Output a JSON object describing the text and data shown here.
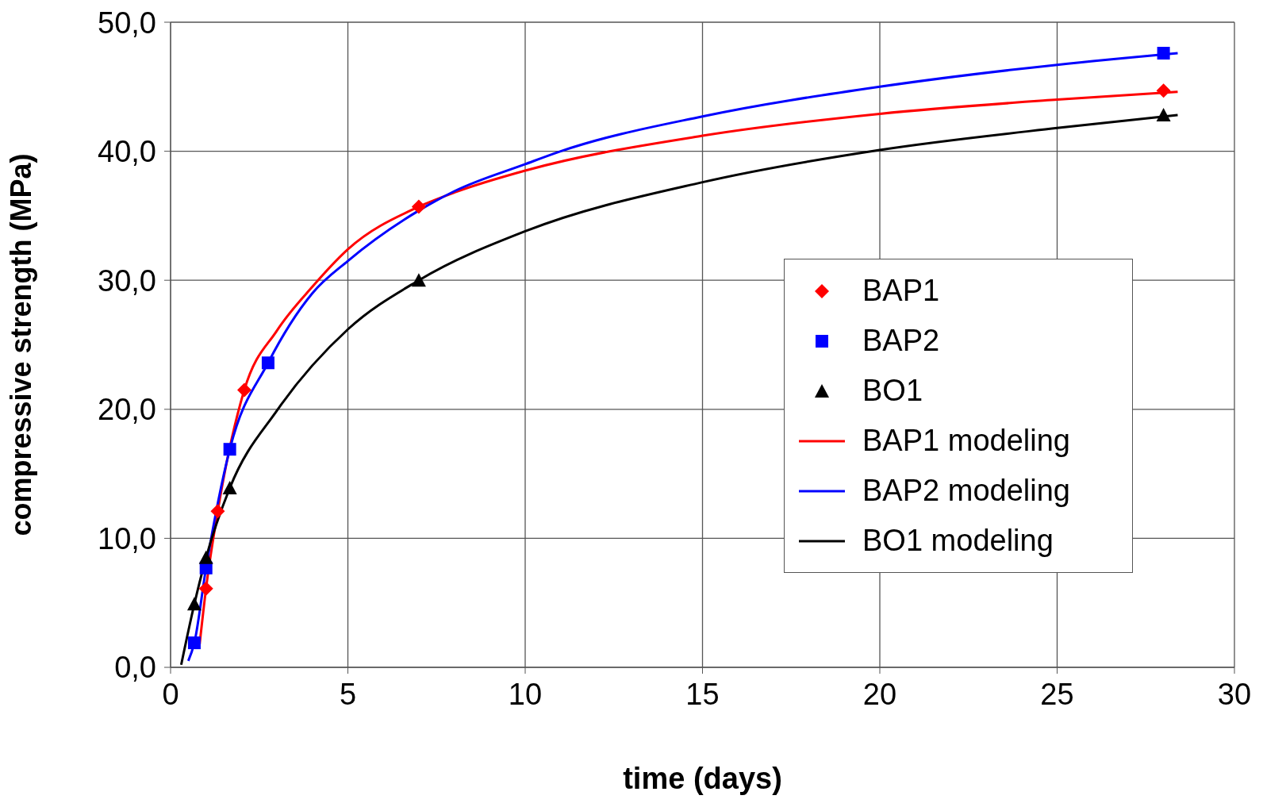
{
  "chart_data": {
    "type": "scatter",
    "xlabel": "time (days)",
    "ylabel": "compressive strength (MPa)",
    "xlim": [
      0,
      30
    ],
    "xticks": [
      0,
      5,
      10,
      15,
      20,
      25,
      30
    ],
    "ylim": [
      0,
      50
    ],
    "yticks": [
      {
        "value": 0,
        "label": "0,0"
      },
      {
        "value": 10,
        "label": "10,0"
      },
      {
        "value": 20,
        "label": "20,0"
      },
      {
        "value": 30,
        "label": "30,0"
      },
      {
        "value": 40,
        "label": "40,0"
      },
      {
        "value": 50,
        "label": "50,0"
      }
    ],
    "grid": true,
    "legend": "right",
    "line_style": "solid",
    "series": [
      {
        "name": "BAP1",
        "marker": "diamond",
        "color": "#ff0000",
        "x": [
          1,
          1.33,
          2.08,
          7,
          28
        ],
        "values": [
          6.1,
          12.1,
          21.5,
          35.7,
          44.7
        ]
      },
      {
        "name": "BAP2",
        "marker": "square",
        "color": "#0000ff",
        "x": [
          0.67,
          1,
          1.67,
          2.75,
          28
        ],
        "values": [
          1.9,
          7.7,
          16.9,
          23.6,
          47.6
        ]
      },
      {
        "name": "BO1",
        "marker": "triangle",
        "color": "#000000",
        "x": [
          0.67,
          1,
          1.67,
          7,
          28
        ],
        "values": [
          4.9,
          8.5,
          13.9,
          30,
          42.8
        ]
      },
      {
        "name": "BAP1 modeling",
        "type": "line",
        "marker": "none",
        "color": "#ff0000",
        "x": [
          0.82,
          1,
          1.33,
          2.08,
          3,
          4,
          5,
          7,
          8,
          10,
          15,
          20,
          25,
          28.4
        ],
        "values": [
          1.8,
          6.1,
          12.1,
          21.5,
          26.1,
          29.5,
          32.4,
          35.7,
          36.8,
          38.5,
          41.2,
          42.9,
          44,
          44.6
        ]
      },
      {
        "name": "BAP2 modeling",
        "type": "line",
        "marker": "none",
        "color": "#0000ff",
        "x": [
          0.5,
          0.67,
          1,
          1.67,
          2.75,
          4,
          5,
          7,
          8,
          10,
          11,
          15,
          20,
          25,
          28.4
        ],
        "values": [
          0.5,
          1.9,
          7.7,
          16.9,
          23.6,
          29,
          31.5,
          35.4,
          36.9,
          39,
          40,
          42.7,
          45,
          46.7,
          47.6
        ]
      },
      {
        "name": "BO1 modeling",
        "type": "line",
        "marker": "none",
        "color": "#000000",
        "x": [
          0.3,
          0.67,
          1,
          1.67,
          3,
          5,
          7,
          10,
          15,
          20,
          25,
          28.4
        ],
        "values": [
          0.2,
          4.9,
          8.5,
          13.9,
          19.9,
          26.2,
          30,
          33.8,
          37.6,
          40.1,
          41.8,
          42.8
        ]
      }
    ]
  }
}
